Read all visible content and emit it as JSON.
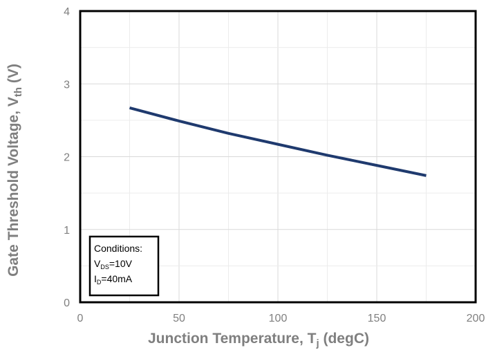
{
  "chart_data": {
    "type": "line",
    "xlabel": "Junction Temperature, T",
    "xlabel_sub": "j",
    "xlabel_suffix": " (degC)",
    "ylabel": "Gate Threshold Voltage, V",
    "ylabel_sub": "th",
    "ylabel_suffix": " (V)",
    "xlim": [
      0,
      200
    ],
    "ylim": [
      0,
      4
    ],
    "xticks": [
      0,
      50,
      100,
      150,
      200
    ],
    "yticks": [
      0,
      1,
      2,
      3,
      4
    ],
    "xtick_labels": [
      "0",
      "50",
      "100",
      "150",
      "200"
    ],
    "ytick_labels": [
      "0",
      "1",
      "2",
      "3",
      "4"
    ],
    "grid": true,
    "series": [
      {
        "color": "#1f3a6e",
        "x": [
          25,
          50,
          75,
          100,
          125,
          150,
          175
        ],
        "y": [
          2.67,
          2.49,
          2.32,
          2.17,
          2.02,
          1.88,
          1.74
        ]
      }
    ],
    "annotation": {
      "title": "Conditions:",
      "line1_main": "V",
      "line1_sub": "DS",
      "line1_rest": "=10V",
      "line2_main": "I",
      "line2_sub": "D",
      "line2_rest": "=40mA"
    }
  }
}
